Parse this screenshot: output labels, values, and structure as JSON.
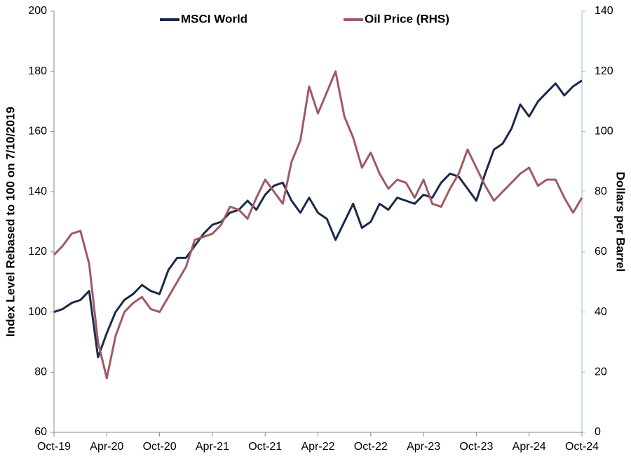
{
  "chart_data": {
    "type": "line",
    "x": [
      "2019-10",
      "2019-11",
      "2019-12",
      "2020-01",
      "2020-02",
      "2020-03",
      "2020-04",
      "2020-05",
      "2020-06",
      "2020-07",
      "2020-08",
      "2020-09",
      "2020-10",
      "2020-11",
      "2020-12",
      "2021-01",
      "2021-02",
      "2021-03",
      "2021-04",
      "2021-05",
      "2021-06",
      "2021-07",
      "2021-08",
      "2021-09",
      "2021-10",
      "2021-11",
      "2021-12",
      "2022-01",
      "2022-02",
      "2022-03",
      "2022-04",
      "2022-05",
      "2022-06",
      "2022-07",
      "2022-08",
      "2022-09",
      "2022-10",
      "2022-11",
      "2022-12",
      "2023-01",
      "2023-02",
      "2023-03",
      "2023-04",
      "2023-05",
      "2023-06",
      "2023-07",
      "2023-08",
      "2023-09",
      "2023-10",
      "2023-11",
      "2023-12",
      "2024-01",
      "2024-02",
      "2024-03",
      "2024-04",
      "2024-05",
      "2024-06",
      "2024-07",
      "2024-08",
      "2024-09",
      "2024-10"
    ],
    "series": [
      {
        "name": "MSCI World",
        "color": "#1b2a4a",
        "axis": "y",
        "values": [
          100,
          101,
          103,
          104,
          107,
          85,
          93,
          100,
          104,
          106,
          109,
          107,
          106,
          114,
          118,
          118,
          122,
          126,
          129,
          130,
          133,
          134,
          137,
          134,
          139,
          142,
          143,
          137,
          133,
          138,
          133,
          131,
          124,
          130,
          136,
          128,
          130,
          136,
          134,
          138,
          137,
          136,
          139,
          138,
          143,
          146,
          145,
          141,
          137,
          146,
          154,
          156,
          161,
          169,
          165,
          170,
          173,
          176,
          172,
          175,
          177
        ]
      },
      {
        "name": "Oil Price (RHS)",
        "color": "#9e5a68",
        "axis": "y2",
        "values": [
          59,
          62,
          66,
          67,
          56,
          30,
          18,
          32,
          40,
          43,
          45,
          41,
          40,
          45,
          50,
          55,
          64,
          65,
          66,
          69,
          75,
          74,
          71,
          78,
          84,
          80,
          76,
          90,
          97,
          115,
          106,
          113,
          120,
          105,
          98,
          88,
          93,
          86,
          81,
          84,
          83,
          78,
          84,
          76,
          75,
          81,
          86,
          94,
          88,
          82,
          77,
          80,
          83,
          86,
          88,
          82,
          84,
          84,
          78,
          73,
          78
        ]
      }
    ],
    "xlim": [
      "2019-10",
      "2024-10"
    ],
    "xticks": [
      {
        "value": "2019-10",
        "label": "Oct-19"
      },
      {
        "value": "2020-04",
        "label": "Apr-20"
      },
      {
        "value": "2020-10",
        "label": "Oct-20"
      },
      {
        "value": "2021-04",
        "label": "Apr-21"
      },
      {
        "value": "2021-10",
        "label": "Oct-21"
      },
      {
        "value": "2022-04",
        "label": "Apr-22"
      },
      {
        "value": "2022-10",
        "label": "Oct-22"
      },
      {
        "value": "2023-04",
        "label": "Apr-23"
      },
      {
        "value": "2023-10",
        "label": "Oct-23"
      },
      {
        "value": "2024-04",
        "label": "Apr-24"
      },
      {
        "value": "2024-10",
        "label": "Oct-24"
      }
    ],
    "ylim": [
      60,
      200
    ],
    "yticks": [
      60,
      80,
      100,
      120,
      140,
      160,
      180,
      200
    ],
    "y2lim": [
      0,
      140
    ],
    "y2ticks": [
      0,
      20,
      40,
      60,
      80,
      100,
      120,
      140
    ],
    "ylabel": "Index Level Rebased to 100 on 7/10/2019",
    "y2label": "Dollars per Barrel",
    "legend": "top"
  }
}
